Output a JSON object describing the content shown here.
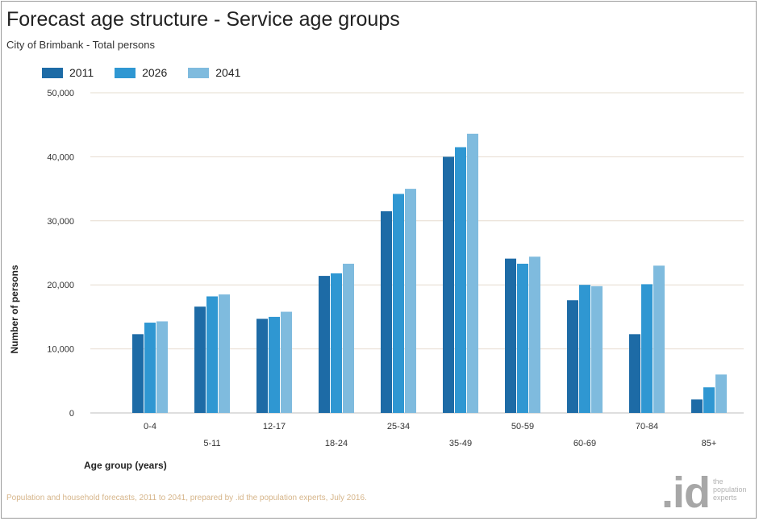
{
  "chart_data": {
    "type": "bar",
    "title": "Forecast age structure - Service age groups",
    "subtitle": "City of Brimbank - Total persons",
    "ylabel": "Number of persons",
    "xlabel": "Age group (years)",
    "ylim": [
      0,
      50000
    ],
    "yticks": [
      0,
      10000,
      20000,
      30000,
      40000,
      50000
    ],
    "ytick_labels": [
      "0",
      "10,000",
      "20,000",
      "30,000",
      "40,000",
      "50,000"
    ],
    "grid": true,
    "legend": "top-left",
    "categories": [
      "0-4",
      "5-11",
      "12-17",
      "18-24",
      "25-34",
      "35-49",
      "50-59",
      "60-69",
      "70-84",
      "85+"
    ],
    "series": [
      {
        "name": "2011",
        "color": "#1d6ba6",
        "values": [
          12300,
          16600,
          14700,
          21400,
          31500,
          40000,
          24100,
          17600,
          12300,
          2100
        ]
      },
      {
        "name": "2026",
        "color": "#2f97d2",
        "values": [
          14100,
          18200,
          15000,
          21800,
          34200,
          41500,
          23300,
          20000,
          20100,
          4000
        ]
      },
      {
        "name": "2041",
        "color": "#7fbbde",
        "values": [
          14300,
          18500,
          15800,
          23300,
          35000,
          43600,
          24400,
          19800,
          23000,
          6000
        ]
      }
    ]
  },
  "source_note": "Population and household forecasts, 2011 to 2041, prepared by .id the population experts, July 2016.",
  "logo": {
    "mark": ".id",
    "tagline": "the population experts"
  }
}
